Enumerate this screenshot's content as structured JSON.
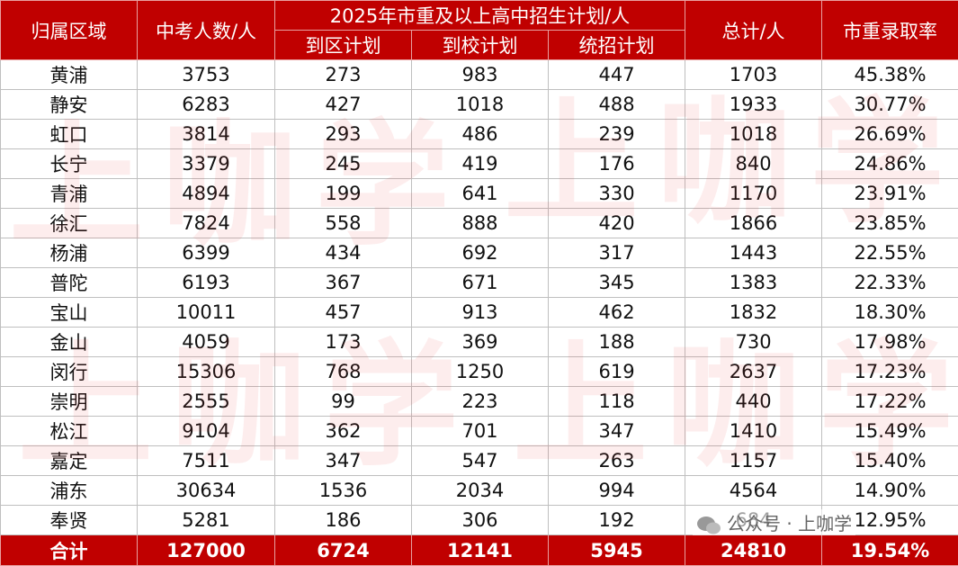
{
  "table": {
    "header": {
      "region": "归属区域",
      "students": "中考人数/人",
      "group": "2025年市重及以上高中招生计划/人",
      "sub": [
        "到区计划",
        "到校计划",
        "统招计划"
      ],
      "total": "总计/人",
      "rate": "市重录取率"
    },
    "rows": [
      [
        "黄浦",
        3753,
        273,
        983,
        447,
        1703,
        "45.38%"
      ],
      [
        "静安",
        6283,
        427,
        1018,
        488,
        1933,
        "30.77%"
      ],
      [
        "虹口",
        3814,
        293,
        486,
        239,
        1018,
        "26.69%"
      ],
      [
        "长宁",
        3379,
        245,
        419,
        176,
        840,
        "24.86%"
      ],
      [
        "青浦",
        4894,
        199,
        641,
        330,
        1170,
        "23.91%"
      ],
      [
        "徐汇",
        7824,
        558,
        888,
        420,
        1866,
        "23.85%"
      ],
      [
        "杨浦",
        6399,
        434,
        692,
        317,
        1443,
        "22.55%"
      ],
      [
        "普陀",
        6193,
        367,
        671,
        345,
        1383,
        "22.33%"
      ],
      [
        "宝山",
        10011,
        457,
        913,
        462,
        1832,
        "18.30%"
      ],
      [
        "金山",
        4059,
        173,
        369,
        188,
        730,
        "17.98%"
      ],
      [
        "闵行",
        15306,
        768,
        1250,
        619,
        2637,
        "17.23%"
      ],
      [
        "崇明",
        2555,
        99,
        223,
        118,
        440,
        "17.22%"
      ],
      [
        "松江",
        9104,
        362,
        701,
        347,
        1410,
        "15.49%"
      ],
      [
        "嘉定",
        7511,
        347,
        547,
        263,
        1157,
        "15.40%"
      ],
      [
        "浦东",
        30634,
        1536,
        2034,
        994,
        4564,
        "14.90%"
      ],
      [
        "奉贤",
        5281,
        186,
        306,
        192,
        684,
        "12.95%"
      ]
    ],
    "total": [
      "合计",
      127000,
      6724,
      12141,
      5945,
      24810,
      "19.54%"
    ]
  },
  "watermark": "上咖学",
  "badge": "公众号 · 上咖学"
}
